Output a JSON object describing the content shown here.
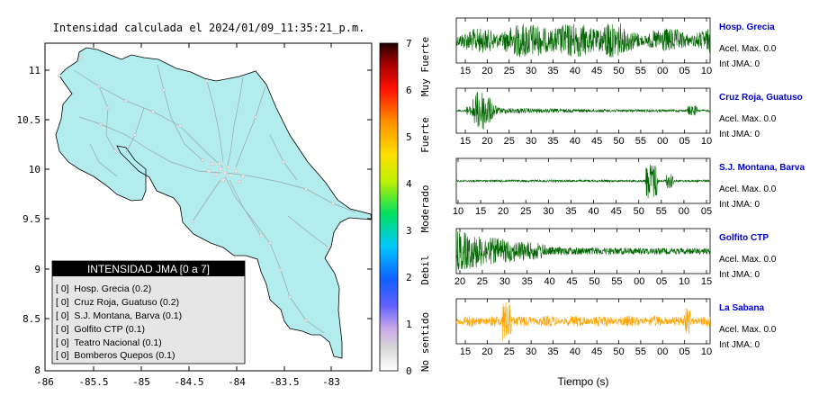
{
  "map": {
    "title": "Intensidad calculada el 2024/01/09_11:35:21_p.m.",
    "x_ticks": [
      "-86",
      "-85.5",
      "-85",
      "-84.5",
      "-84",
      "-83.5",
      "-83"
    ],
    "y_ticks": [
      "11",
      "10.5",
      "10",
      "9.5",
      "9",
      "8.5",
      "8"
    ],
    "land_color": "#b2ecec",
    "legend": {
      "header": "INTENSIDAD JMA [0 a 7]",
      "rows": [
        "[ 0]  Hosp. Grecia (0.2)",
        "[ 0]  Cruz Roja, Guatuso (0.2)",
        "[ 0]  S.J. Montana, Barva (0.1)",
        "[ 0]  Golfito CTP (0.1)",
        "[ 0]  Teatro Nacional (0.1)",
        "[ 0]  Bomberos Quepos (0.1)"
      ]
    }
  },
  "colorbar": {
    "ticks": [
      "7",
      "6",
      "5",
      "4",
      "3",
      "2",
      "1",
      "0"
    ],
    "labels": [
      "Muy Fuerte",
      "Fuerte",
      "Moderado",
      "Debil",
      "No sentido"
    ]
  },
  "traces": {
    "xlabel": "Tiempo (s)",
    "stations": [
      {
        "name": "Hosp. Grecia",
        "acel": "Acel. Max. 0.0",
        "jma": "Int JMA: 0",
        "color": "#006400",
        "ticks": [
          "15",
          "20",
          "25",
          "30",
          "35",
          "40",
          "45",
          "50",
          "55",
          "00",
          "05",
          "10"
        ]
      },
      {
        "name": "Cruz Roja, Guatuso",
        "acel": "Acel. Max. 0.0",
        "jma": "Int JMA: 0",
        "color": "#006400",
        "ticks": [
          "15",
          "20",
          "25",
          "30",
          "35",
          "40",
          "45",
          "50",
          "55",
          "00",
          "05",
          "10"
        ]
      },
      {
        "name": "S.J. Montana, Barva",
        "acel": "Acel. Max. 0.0",
        "jma": "Int JMA: 0",
        "color": "#006400",
        "ticks": [
          "10",
          "15",
          "20",
          "25",
          "30",
          "35",
          "40",
          "45",
          "50",
          "55",
          "00",
          "05"
        ]
      },
      {
        "name": "Golfito CTP",
        "acel": "Acel. Max. 0.0",
        "jma": "Int JMA: 0",
        "color": "#006400",
        "ticks": [
          "20",
          "25",
          "30",
          "35",
          "40",
          "45",
          "50",
          "55",
          "00",
          "05",
          "10",
          "15"
        ]
      },
      {
        "name": "La Sabana",
        "acel": "Acel. Max. 0.0",
        "jma": "Int JMA: 0",
        "color": "#ffa500",
        "ticks": [
          "15",
          "20",
          "25",
          "30",
          "35",
          "40",
          "45",
          "50",
          "55",
          "00",
          "05",
          "10"
        ]
      }
    ]
  },
  "chart_data": [
    {
      "type": "scatter",
      "title": "Intensidad calculada el 2024/01/09_11:35:21_p.m.",
      "xlim": [
        -86,
        -82.7
      ],
      "ylim": [
        8,
        11.3
      ],
      "legend": [
        "Hosp. Grecia (0.2)",
        "Cruz Roja, Guatuso (0.2)",
        "S.J. Montana, Barva (0.1)",
        "Golfito CTP (0.1)",
        "Teatro Nacional (0.1)",
        "Bomberos Quepos (0.1)"
      ]
    },
    {
      "type": "line",
      "xlabel": "Tiempo (s)",
      "series": [
        {
          "name": "Hosp. Grecia"
        },
        {
          "name": "Cruz Roja, Guatuso"
        },
        {
          "name": "S.J. Montana, Barva"
        },
        {
          "name": "Golfito CTP"
        },
        {
          "name": "La Sabana"
        }
      ]
    }
  ]
}
